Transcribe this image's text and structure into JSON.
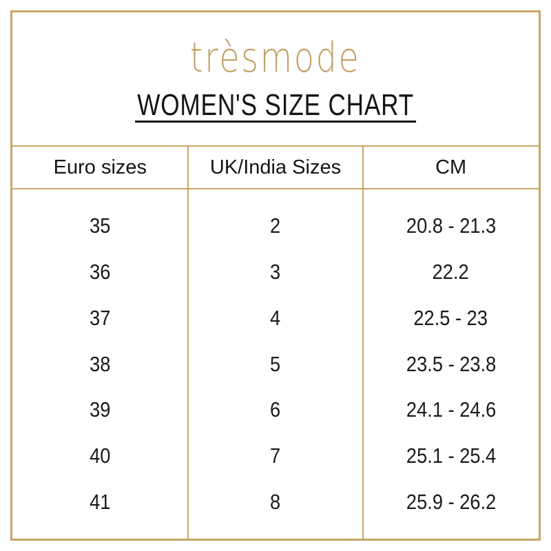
{
  "brand": {
    "logo_text": "trèsmode"
  },
  "title": "WOMEN'S SIZE CHART",
  "chart_data": {
    "type": "table",
    "title": "WOMEN'S SIZE CHART",
    "columns": [
      "Euro sizes",
      "UK/India Sizes",
      "CM"
    ],
    "rows": [
      [
        "35",
        "2",
        "20.8 - 21.3"
      ],
      [
        "36",
        "3",
        "22.2"
      ],
      [
        "37",
        "4",
        "22.5 - 23"
      ],
      [
        "38",
        "5",
        "23.5 - 23.8"
      ],
      [
        "39",
        "6",
        "24.1 - 24.6"
      ],
      [
        "40",
        "7",
        "25.1 - 25.4"
      ],
      [
        "41",
        "8",
        "25.9 - 26.2"
      ]
    ],
    "layout": {
      "grid": "gold ruled columns, header row ruled top and bottom, no horizontal dividers between body rows",
      "legend_position": "none"
    }
  },
  "colors": {
    "accent_gold": "#c9a566",
    "logo_gold": "#c2a167",
    "text": "#141414",
    "background": "#ffffff"
  }
}
